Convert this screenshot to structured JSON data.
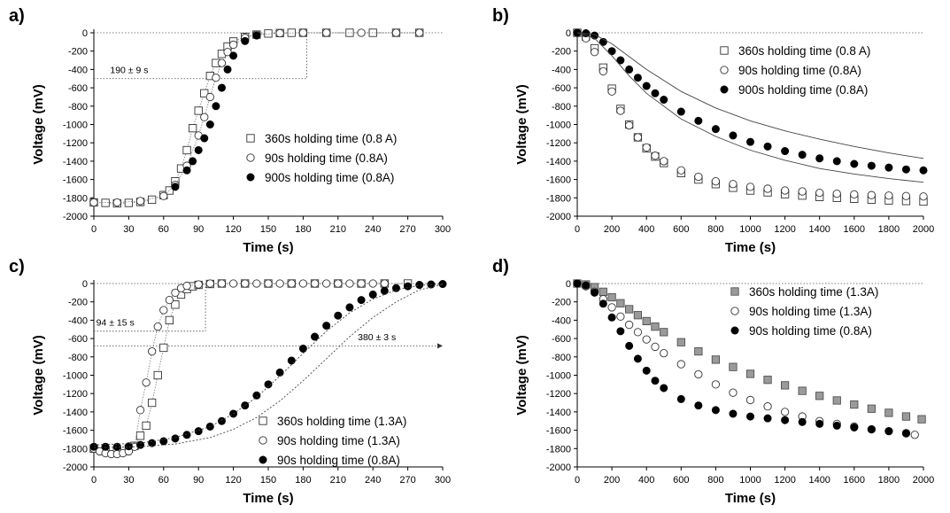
{
  "chart_data": [
    {
      "panel": "a)",
      "type": "scatter",
      "xlabel": "Time (s)",
      "ylabel": "Voltage (mV)",
      "xlim": [
        0,
        300
      ],
      "ylim": [
        -2000,
        0
      ],
      "xticks": [
        0,
        30,
        60,
        90,
        120,
        150,
        180,
        210,
        240,
        270,
        300
      ],
      "yticks": [
        0,
        -200,
        -400,
        -600,
        -800,
        -1000,
        -1200,
        -1400,
        -1600,
        -1800,
        -2000
      ],
      "legend_position": "center-right",
      "reference_line": 0,
      "annotations": [
        {
          "text": "190 ± 9 s",
          "at_x": 14,
          "at_y": -400,
          "dotted_y": -500,
          "dotted_x_end": 183
        }
      ],
      "series": [
        {
          "name": "360s holding time (0.8 A)",
          "marker": "open-square",
          "connect": true,
          "x": [
            0,
            10,
            20,
            30,
            40,
            50,
            60,
            65,
            70,
            75,
            80,
            85,
            90,
            95,
            100,
            105,
            110,
            115,
            120,
            130,
            140,
            150,
            160,
            170,
            180,
            200,
            220,
            240,
            260,
            280
          ],
          "y": [
            -1850,
            -1855,
            -1860,
            -1855,
            -1845,
            -1820,
            -1770,
            -1720,
            -1620,
            -1480,
            -1280,
            -1040,
            -850,
            -660,
            -470,
            -330,
            -230,
            -150,
            -95,
            -45,
            -20,
            -8,
            -3,
            0,
            0,
            0,
            0,
            0,
            0,
            0
          ]
        },
        {
          "name": "90s holding time (0.8A)",
          "marker": "open-circle",
          "connect": true,
          "x": [
            0,
            20,
            40,
            60,
            70,
            80,
            90,
            95,
            100,
            105,
            110,
            115,
            120,
            130,
            140,
            160,
            180,
            200,
            230,
            260,
            280
          ],
          "y": [
            -1850,
            -1850,
            -1835,
            -1780,
            -1660,
            -1450,
            -1120,
            -920,
            -700,
            -490,
            -330,
            -210,
            -130,
            -55,
            -20,
            -5,
            0,
            0,
            0,
            0,
            0
          ]
        },
        {
          "name": "900s holding time (0.8A)",
          "marker": "filled-circle",
          "connect": false,
          "x": [
            70,
            80,
            85,
            90,
            95,
            100,
            105,
            110,
            115,
            120,
            130,
            140
          ],
          "y": [
            -1680,
            -1500,
            -1400,
            -1280,
            -1150,
            -1000,
            -800,
            -600,
            -400,
            -250,
            -90,
            -30
          ]
        }
      ]
    },
    {
      "panel": "b)",
      "type": "scatter",
      "xlabel": "Time (s)",
      "ylabel": "Voltage (mV)",
      "xlim": [
        0,
        2000
      ],
      "ylim": [
        -2000,
        0
      ],
      "xticks": [
        0,
        200,
        400,
        600,
        800,
        1000,
        1200,
        1400,
        1600,
        1800,
        2000
      ],
      "yticks": [
        0,
        -200,
        -400,
        -600,
        -800,
        -1000,
        -1200,
        -1400,
        -1600,
        -1800,
        -2000
      ],
      "legend_position": "top-right",
      "reference_line": 0,
      "series": [
        {
          "name": "360s holding time (0.8 A)",
          "marker": "open-square",
          "connect": false,
          "x": [
            0,
            50,
            100,
            150,
            200,
            250,
            300,
            350,
            400,
            450,
            500,
            600,
            700,
            800,
            900,
            1000,
            1100,
            1200,
            1300,
            1400,
            1500,
            1600,
            1700,
            1800,
            1900,
            2000
          ],
          "y": [
            0,
            -40,
            -170,
            -380,
            -610,
            -830,
            -1000,
            -1140,
            -1260,
            -1350,
            -1420,
            -1530,
            -1600,
            -1650,
            -1690,
            -1720,
            -1740,
            -1760,
            -1775,
            -1790,
            -1800,
            -1810,
            -1820,
            -1828,
            -1834,
            -1840
          ]
        },
        {
          "name": "90s holding time (0.8A)",
          "marker": "open-circle",
          "connect": false,
          "x": [
            0,
            50,
            100,
            150,
            200,
            250,
            300,
            350,
            400,
            450,
            500,
            600,
            700,
            800,
            900,
            1000,
            1100,
            1200,
            1300,
            1400,
            1500,
            1600,
            1700,
            1800,
            1900,
            2000
          ],
          "y": [
            0,
            -60,
            -210,
            -420,
            -640,
            -850,
            -1010,
            -1140,
            -1250,
            -1340,
            -1400,
            -1500,
            -1570,
            -1620,
            -1650,
            -1680,
            -1700,
            -1720,
            -1730,
            -1745,
            -1755,
            -1762,
            -1770,
            -1775,
            -1780,
            -1785
          ]
        },
        {
          "name": "900s holding time (0.8A)",
          "marker": "filled-circle",
          "connect": false,
          "x": [
            0,
            50,
            100,
            150,
            200,
            250,
            300,
            350,
            400,
            450,
            500,
            600,
            700,
            800,
            900,
            1000,
            1100,
            1200,
            1300,
            1400,
            1500,
            1600,
            1700,
            1800,
            1900,
            2000
          ],
          "y": [
            0,
            -5,
            -30,
            -100,
            -200,
            -300,
            -400,
            -490,
            -580,
            -660,
            -730,
            -860,
            -960,
            -1050,
            -1120,
            -1190,
            -1240,
            -1290,
            -1330,
            -1370,
            -1400,
            -1430,
            -1450,
            -1470,
            -1490,
            -1500
          ]
        },
        {
          "name": "",
          "marker": "thin-line",
          "connect": true,
          "x": [
            0,
            100,
            200,
            300,
            400,
            600,
            800,
            1000,
            1200,
            1400,
            1600,
            1800,
            2000
          ],
          "y": [
            0,
            -20,
            -120,
            -260,
            -400,
            -640,
            -820,
            -960,
            -1070,
            -1160,
            -1240,
            -1310,
            -1370
          ]
        },
        {
          "name": "",
          "marker": "thin-line",
          "connect": true,
          "x": [
            0,
            100,
            200,
            300,
            400,
            600,
            800,
            1000,
            1200,
            1400,
            1600,
            1800,
            2000
          ],
          "y": [
            0,
            -60,
            -250,
            -470,
            -660,
            -940,
            -1130,
            -1280,
            -1390,
            -1480,
            -1540,
            -1590,
            -1630
          ]
        }
      ]
    },
    {
      "panel": "c)",
      "type": "scatter",
      "xlabel": "Time (s)",
      "ylabel": "Voltage (mV)",
      "xlim": [
        0,
        300
      ],
      "ylim": [
        -2000,
        0
      ],
      "xticks": [
        0,
        30,
        60,
        90,
        120,
        150,
        180,
        210,
        240,
        270,
        300
      ],
      "yticks": [
        0,
        -200,
        -400,
        -600,
        -800,
        -1000,
        -1200,
        -1400,
        -1600,
        -1800,
        -2000
      ],
      "legend_position": "bottom-right",
      "reference_line": 0,
      "annotations": [
        {
          "text": "94 ± 15 s",
          "at_x": 2,
          "at_y": -420,
          "dotted_y": -520,
          "dotted_x_end": 96
        },
        {
          "text": "380 ± 3 s",
          "at_x": 227,
          "at_y": -580,
          "dotted_y": -680,
          "dotted_x_end": 300,
          "arrow": true
        }
      ],
      "series": [
        {
          "name": "360s holding time (1.3A)",
          "marker": "open-square",
          "connect": true,
          "x": [
            0,
            10,
            20,
            30,
            35,
            40,
            45,
            50,
            55,
            60,
            65,
            70,
            75,
            80,
            85,
            90,
            100,
            110,
            130,
            150,
            170,
            190,
            210,
            230,
            250,
            270
          ],
          "y": [
            -1800,
            -1820,
            -1830,
            -1800,
            -1770,
            -1660,
            -1550,
            -1300,
            -1000,
            -700,
            -400,
            -230,
            -120,
            -60,
            -30,
            -15,
            -5,
            0,
            0,
            0,
            0,
            0,
            0,
            0,
            0,
            0
          ]
        },
        {
          "name": "90s holding time (1.3A)",
          "marker": "open-circle",
          "connect": true,
          "x": [
            0,
            5,
            10,
            15,
            20,
            25,
            30,
            35,
            40,
            45,
            50,
            55,
            60,
            65,
            70,
            75,
            80,
            90,
            100,
            110,
            120,
            130,
            140,
            150,
            160,
            170,
            180,
            190,
            200,
            210,
            220,
            230,
            240,
            250
          ],
          "y": [
            -1800,
            -1830,
            -1850,
            -1860,
            -1860,
            -1850,
            -1830,
            -1780,
            -1380,
            -1080,
            -740,
            -470,
            -290,
            -180,
            -100,
            -50,
            -25,
            -10,
            0,
            0,
            0,
            0,
            0,
            0,
            0,
            0,
            0,
            0,
            0,
            0,
            0,
            0,
            0,
            0
          ]
        },
        {
          "name": "90s holding time (0.8A)",
          "marker": "filled-circle",
          "connect": false,
          "x": [
            0,
            10,
            20,
            30,
            40,
            50,
            60,
            70,
            80,
            90,
            100,
            110,
            120,
            130,
            140,
            150,
            160,
            170,
            180,
            190,
            200,
            210,
            220,
            230,
            240,
            250,
            260,
            270,
            280,
            290,
            300
          ],
          "y": [
            -1780,
            -1780,
            -1780,
            -1775,
            -1760,
            -1740,
            -1720,
            -1690,
            -1650,
            -1610,
            -1560,
            -1500,
            -1420,
            -1330,
            -1220,
            -1100,
            -970,
            -840,
            -710,
            -580,
            -460,
            -350,
            -260,
            -180,
            -120,
            -80,
            -50,
            -30,
            -15,
            -10,
            -5
          ]
        },
        {
          "name": "",
          "marker": "thin-dotted-line",
          "connect": true,
          "x": [
            0,
            40,
            70,
            100,
            120,
            140,
            160,
            180,
            200,
            220,
            240,
            260,
            280,
            300
          ],
          "y": [
            -1760,
            -1740,
            -1680,
            -1560,
            -1420,
            -1240,
            -1010,
            -760,
            -520,
            -320,
            -170,
            -70,
            -20,
            -5
          ]
        },
        {
          "name": "",
          "marker": "thin-dotted-line",
          "connect": true,
          "x": [
            0,
            40,
            70,
            100,
            120,
            140,
            160,
            180,
            200,
            220,
            240,
            260,
            280,
            300
          ],
          "y": [
            -1790,
            -1780,
            -1750,
            -1680,
            -1590,
            -1460,
            -1280,
            -1060,
            -820,
            -580,
            -370,
            -200,
            -70,
            -10
          ]
        }
      ]
    },
    {
      "panel": "d)",
      "type": "scatter",
      "xlabel": "Time (s)",
      "ylabel": "Voltage (mV)",
      "xlim": [
        0,
        2000
      ],
      "ylim": [
        -2000,
        0
      ],
      "xticks": [
        0,
        200,
        400,
        600,
        800,
        1000,
        1200,
        1400,
        1600,
        1800,
        2000
      ],
      "yticks": [
        0,
        -200,
        -400,
        -600,
        -800,
        -1000,
        -1200,
        -1400,
        -1600,
        -1800,
        -2000
      ],
      "legend_position": "top-right",
      "reference_line": 0,
      "series": [
        {
          "name": "360s holding time (1.3A)",
          "marker": "filled-gray-square",
          "connect": false,
          "x": [
            0,
            50,
            100,
            150,
            200,
            250,
            300,
            350,
            400,
            450,
            500,
            600,
            700,
            800,
            900,
            1000,
            1100,
            1200,
            1300,
            1400,
            1500,
            1600,
            1700,
            1800,
            1900,
            1990
          ],
          "y": [
            0,
            -10,
            -40,
            -90,
            -150,
            -215,
            -280,
            -345,
            -410,
            -470,
            -530,
            -640,
            -740,
            -830,
            -910,
            -985,
            -1050,
            -1110,
            -1170,
            -1225,
            -1275,
            -1320,
            -1365,
            -1410,
            -1450,
            -1480
          ]
        },
        {
          "name": "90s holding time (1.3A)",
          "marker": "open-circle",
          "connect": false,
          "x": [
            0,
            50,
            100,
            150,
            200,
            250,
            300,
            350,
            400,
            450,
            500,
            600,
            700,
            800,
            900,
            1000,
            1100,
            1200,
            1300,
            1400,
            1500,
            1600,
            1700,
            1800,
            1900,
            1950
          ],
          "y": [
            0,
            -30,
            -90,
            -170,
            -260,
            -360,
            -450,
            -530,
            -610,
            -690,
            -760,
            -880,
            -990,
            -1100,
            -1190,
            -1270,
            -1340,
            -1400,
            -1450,
            -1500,
            -1530,
            -1560,
            -1590,
            -1610,
            -1635,
            -1650
          ]
        },
        {
          "name": "90s holding time (0.8A)",
          "marker": "filled-circle",
          "connect": false,
          "x": [
            0,
            50,
            100,
            150,
            200,
            250,
            300,
            350,
            400,
            450,
            500,
            600,
            700,
            800,
            900,
            1000,
            1100,
            1200,
            1300,
            1400,
            1500,
            1600,
            1700,
            1800,
            1900
          ],
          "y": [
            0,
            -20,
            -100,
            -220,
            -370,
            -520,
            -680,
            -820,
            -950,
            -1060,
            -1140,
            -1260,
            -1330,
            -1380,
            -1420,
            -1450,
            -1470,
            -1490,
            -1510,
            -1530,
            -1550,
            -1570,
            -1590,
            -1610,
            -1630
          ]
        }
      ]
    }
  ]
}
